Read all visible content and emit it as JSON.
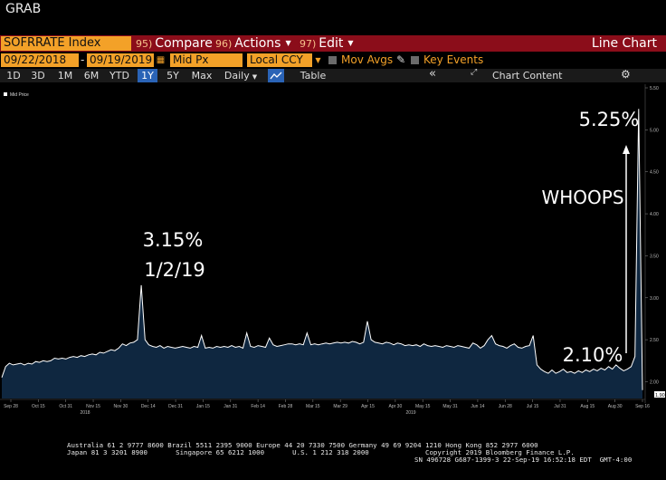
{
  "window_title": "GRAB",
  "toolbar": {
    "security": "SOFRRATE Index",
    "compare": {
      "num": "95)",
      "label": "Compare"
    },
    "actions": {
      "num": "96)",
      "label": "Actions"
    },
    "edit": {
      "num": "97)",
      "label": "Edit"
    },
    "chart_type": "Line Chart"
  },
  "options": {
    "start_date": "09/22/2018",
    "date_sep": "-",
    "end_date": "09/19/2019",
    "price_field": "Mid Px",
    "currency": "Local CCY",
    "mov_avgs": "Mov Avgs",
    "key_events": "Key Events"
  },
  "periods": [
    {
      "label": "1D",
      "active": false
    },
    {
      "label": "3D",
      "active": false
    },
    {
      "label": "1M",
      "active": false
    },
    {
      "label": "6M",
      "active": false
    },
    {
      "label": "YTD",
      "active": false
    },
    {
      "label": "1Y",
      "active": true
    },
    {
      "label": "5Y",
      "active": false
    },
    {
      "label": "Max",
      "active": false
    },
    {
      "label": "Daily",
      "active": false
    }
  ],
  "table_label": "Table",
  "chart_content_label": "Chart Content",
  "icons": {
    "collapse": "double-chevron-left-icon",
    "settings": "gear-icon",
    "chart-type": "line-chart-icon"
  },
  "colors": {
    "command_bar": "#8b0d1a",
    "amber": "#f3a128",
    "active_tab": "#2a63b6",
    "area_fill": "#0f2740",
    "line": "#ffffff"
  },
  "chart_data": {
    "type": "area",
    "legend": "Mid Price",
    "ylim": [
      1.8,
      5.5
    ],
    "y_ticks": [
      "5.50",
      "5.00",
      "4.50",
      "4.00",
      "3.50",
      "3.00",
      "2.50",
      "2.00"
    ],
    "last_value_label": "1.90",
    "x_ticks": [
      "Sep 28",
      "Oct 15",
      "Oct 31",
      "Nov 15",
      "Nov 30",
      "Dec 14",
      "Dec 31",
      "Jan 15",
      "Jan 31",
      "Feb 14",
      "Feb 28",
      "Mar 15",
      "Mar 29",
      "Apr 15",
      "Apr 30",
      "May 15",
      "May 31",
      "Jun 14",
      "Jun 28",
      "Jul 15",
      "Jul 31",
      "Aug 15",
      "Aug 30",
      "Sep 16"
    ],
    "year_labels": [
      "2018",
      "2019"
    ],
    "values": [
      2.05,
      2.18,
      2.22,
      2.2,
      2.21,
      2.22,
      2.2,
      2.22,
      2.21,
      2.24,
      2.23,
      2.25,
      2.24,
      2.25,
      2.28,
      2.27,
      2.28,
      2.27,
      2.29,
      2.3,
      2.29,
      2.31,
      2.3,
      2.32,
      2.33,
      2.32,
      2.35,
      2.34,
      2.36,
      2.38,
      2.37,
      2.4,
      2.45,
      2.43,
      2.46,
      2.47,
      2.5,
      3.15,
      2.5,
      2.44,
      2.42,
      2.41,
      2.43,
      2.4,
      2.42,
      2.41,
      2.4,
      2.41,
      2.42,
      2.41,
      2.4,
      2.42,
      2.41,
      2.55,
      2.4,
      2.41,
      2.4,
      2.42,
      2.41,
      2.42,
      2.41,
      2.43,
      2.41,
      2.42,
      2.4,
      2.58,
      2.42,
      2.41,
      2.43,
      2.42,
      2.41,
      2.52,
      2.44,
      2.42,
      2.43,
      2.44,
      2.45,
      2.45,
      2.44,
      2.45,
      2.44,
      2.58,
      2.44,
      2.45,
      2.44,
      2.45,
      2.46,
      2.45,
      2.46,
      2.47,
      2.46,
      2.47,
      2.46,
      2.48,
      2.47,
      2.45,
      2.47,
      2.72,
      2.5,
      2.47,
      2.46,
      2.45,
      2.47,
      2.46,
      2.44,
      2.46,
      2.45,
      2.43,
      2.44,
      2.43,
      2.44,
      2.42,
      2.45,
      2.43,
      2.42,
      2.43,
      2.42,
      2.41,
      2.43,
      2.42,
      2.41,
      2.43,
      2.42,
      2.41,
      2.4,
      2.46,
      2.44,
      2.4,
      2.43,
      2.5,
      2.55,
      2.45,
      2.43,
      2.42,
      2.4,
      2.43,
      2.45,
      2.41,
      2.4,
      2.42,
      2.43,
      2.55,
      2.2,
      2.15,
      2.12,
      2.1,
      2.14,
      2.1,
      2.12,
      2.15,
      2.11,
      2.12,
      2.1,
      2.13,
      2.11,
      2.14,
      2.12,
      2.15,
      2.13,
      2.16,
      2.14,
      2.18,
      2.15,
      2.2,
      2.16,
      2.13,
      2.15,
      2.18,
      2.3,
      5.25,
      1.9
    ]
  },
  "annotations": {
    "peak_label": "3.15%",
    "peak_date": "1/2/19",
    "spike_label": "5.25%",
    "spike_comment": "WHOOPS",
    "low_label": "2.10%"
  },
  "footer": {
    "line1": "Australia 61 2 9777 8600 Brazil 5511 2395 9000 Europe 44 20 7330 7500 Germany 49 69 9204 1210 Hong Kong 852 2977 6000",
    "line2": "Japan 81 3 3201 8900       Singapore 65 6212 1000       U.S. 1 212 318 2000              Copyright 2019 Bloomberg Finance L.P.",
    "line3": "SN 496728 G687-1399-3 22-Sep-19 16:52:18 EDT  GMT-4:00"
  }
}
